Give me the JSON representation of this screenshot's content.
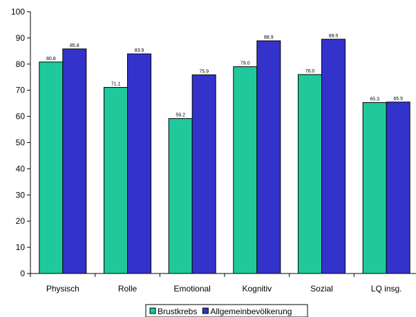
{
  "chart_data": {
    "type": "bar",
    "categories": [
      "Physisch",
      "Rolle",
      "Emotional",
      "Kognitiv",
      "Sozial",
      "LQ insg."
    ],
    "series": [
      {
        "name": "Brustkrebs",
        "values": [
          80.8,
          71.1,
          59.2,
          79.0,
          76.0,
          65.3
        ],
        "value_labels": [
          "80.8",
          "71.1",
          "59.2",
          "79.0",
          "76.0",
          "65.3"
        ],
        "color": "#1fc99b"
      },
      {
        "name": "Allgemeinbevölkerung",
        "values": [
          85.8,
          83.9,
          75.9,
          88.9,
          89.5,
          65.5
        ],
        "value_labels": [
          "85.8",
          "83.9",
          "75.9",
          "88.9",
          "89.5",
          "65.5"
        ],
        "color": "#3333cc"
      }
    ],
    "ylim": [
      0,
      100
    ],
    "yticks": [
      0,
      10,
      20,
      30,
      40,
      50,
      60,
      70,
      80,
      90,
      100
    ],
    "legend_position": "bottom",
    "grid": false
  }
}
